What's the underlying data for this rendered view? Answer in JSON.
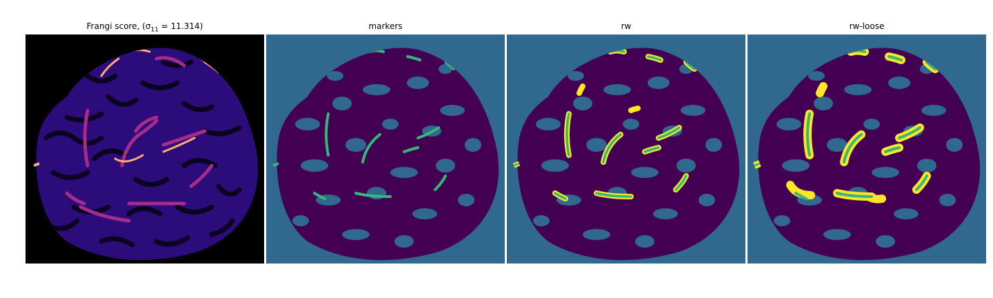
{
  "figure": {
    "panels": [
      {
        "id": "frangi",
        "title": "Frangi score, (σ",
        "title_sub": "11",
        "title_tail": " = 11.314)",
        "colormap": "magma"
      },
      {
        "id": "markers",
        "title": "markers"
      },
      {
        "id": "rw",
        "title": "rw"
      },
      {
        "id": "rw-loose",
        "title": "rw-loose"
      }
    ],
    "colors": {
      "background_label": "#31688e",
      "tissue_label": "#440154",
      "marker_label": "#35b779",
      "vessel_label": "#fde725",
      "frangi_bg": "#000000",
      "frangi_low": "#2c0b7a",
      "frangi_mid": "#a52c8a",
      "frangi_high": "#fcae6f"
    }
  }
}
